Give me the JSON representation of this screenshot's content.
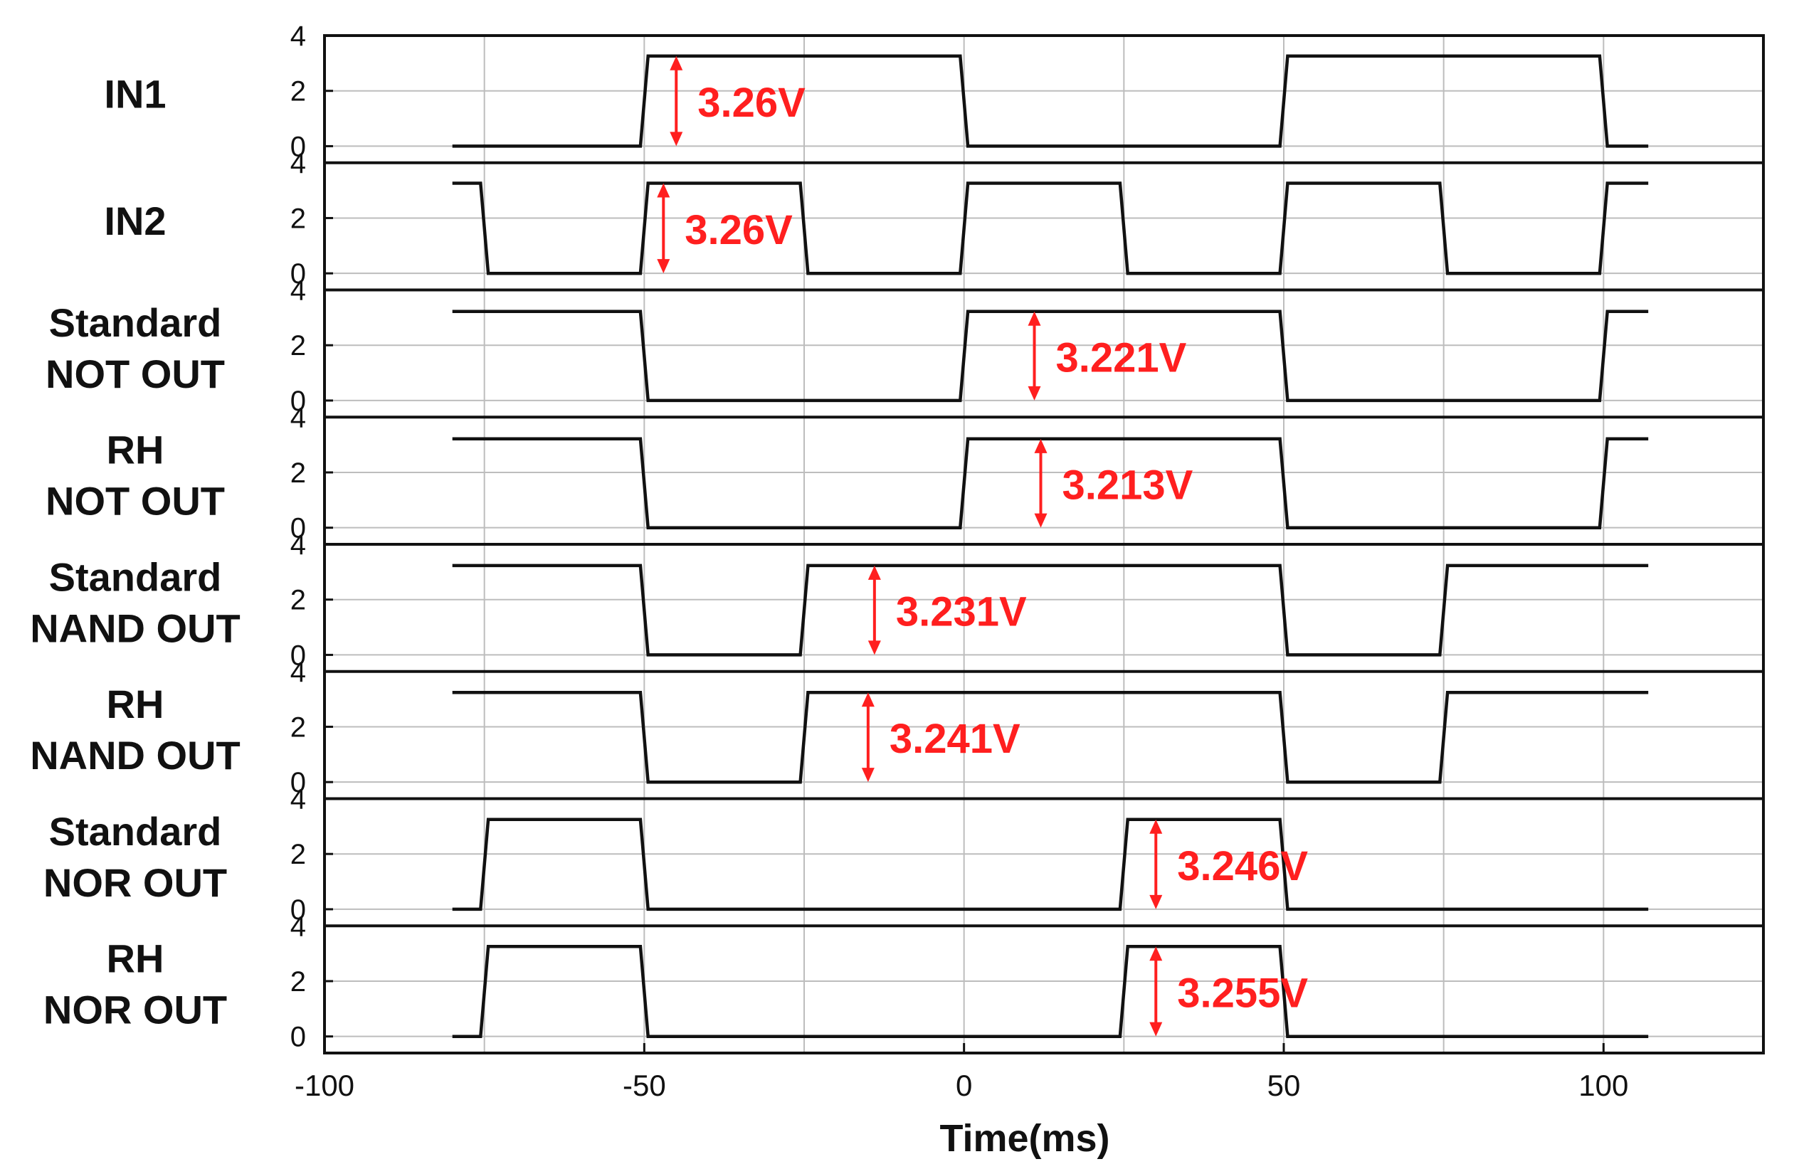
{
  "chart_data": {
    "type": "line",
    "xlabel": "Time(ms)",
    "xlim": [
      -100,
      125
    ],
    "x_ticks": [
      -100,
      -50,
      0,
      50,
      100
    ],
    "ylim": [
      -0.6,
      4
    ],
    "y_ticks": [
      0,
      2,
      4
    ],
    "grid": true,
    "data_range": [
      -80,
      107
    ],
    "series": [
      {
        "name": "IN1",
        "label_lines": [
          "IN1"
        ],
        "low": 0,
        "high": 3.26,
        "edges": [
          {
            "t": -50,
            "to": 1
          },
          {
            "t": 0,
            "to": 0
          },
          {
            "t": 50,
            "to": 1
          },
          {
            "t": 100,
            "to": 0
          }
        ],
        "start_state": 0,
        "annotation": {
          "text": "3.26V",
          "x": -45
        }
      },
      {
        "name": "IN2",
        "label_lines": [
          "IN2"
        ],
        "low": 0,
        "high": 3.26,
        "edges": [
          {
            "t": -75,
            "to": 0
          },
          {
            "t": -50,
            "to": 1
          },
          {
            "t": -25,
            "to": 0
          },
          {
            "t": 0,
            "to": 1
          },
          {
            "t": 25,
            "to": 0
          },
          {
            "t": 50,
            "to": 1
          },
          {
            "t": 75,
            "to": 0
          },
          {
            "t": 100,
            "to": 1
          }
        ],
        "start_state": 1,
        "annotation": {
          "text": "3.26V",
          "x": -47
        }
      },
      {
        "name": "Standard NOT OUT",
        "label_lines": [
          "Standard",
          "NOT OUT"
        ],
        "low": 0,
        "high": 3.221,
        "edges": [
          {
            "t": -50,
            "to": 0
          },
          {
            "t": 0,
            "to": 1
          },
          {
            "t": 50,
            "to": 0
          },
          {
            "t": 100,
            "to": 1
          }
        ],
        "start_state": 1,
        "annotation": {
          "text": "3.221V",
          "x": 11
        }
      },
      {
        "name": "RH NOT OUT",
        "label_lines": [
          "RH",
          "NOT OUT"
        ],
        "low": 0,
        "high": 3.213,
        "edges": [
          {
            "t": -50,
            "to": 0
          },
          {
            "t": 0,
            "to": 1
          },
          {
            "t": 50,
            "to": 0
          },
          {
            "t": 100,
            "to": 1
          }
        ],
        "start_state": 1,
        "annotation": {
          "text": "3.213V",
          "x": 12
        }
      },
      {
        "name": "Standard NAND OUT",
        "label_lines": [
          "Standard",
          "NAND OUT"
        ],
        "low": 0,
        "high": 3.231,
        "edges": [
          {
            "t": -50,
            "to": 0
          },
          {
            "t": -25,
            "to": 1
          },
          {
            "t": 50,
            "to": 0
          },
          {
            "t": 75,
            "to": 1
          }
        ],
        "start_state": 1,
        "annotation": {
          "text": "3.231V",
          "x": -14
        }
      },
      {
        "name": "RH NAND OUT",
        "label_lines": [
          "RH",
          "NAND OUT"
        ],
        "low": 0,
        "high": 3.241,
        "edges": [
          {
            "t": -50,
            "to": 0
          },
          {
            "t": -25,
            "to": 1
          },
          {
            "t": 50,
            "to": 0
          },
          {
            "t": 75,
            "to": 1
          }
        ],
        "start_state": 1,
        "annotation": {
          "text": "3.241V",
          "x": -15
        }
      },
      {
        "name": "Standard NOR OUT",
        "label_lines": [
          "Standard",
          "NOR OUT"
        ],
        "low": 0,
        "high": 3.246,
        "edges": [
          {
            "t": -75,
            "to": 1
          },
          {
            "t": -50,
            "to": 0
          },
          {
            "t": 25,
            "to": 1
          },
          {
            "t": 50,
            "to": 0
          }
        ],
        "start_state": 0,
        "annotation": {
          "text": "3.246V",
          "x": 30
        }
      },
      {
        "name": "RH NOR OUT",
        "label_lines": [
          "RH",
          "NOR OUT"
        ],
        "low": 0,
        "high": 3.255,
        "edges": [
          {
            "t": -75,
            "to": 1
          },
          {
            "t": -50,
            "to": 0
          },
          {
            "t": 25,
            "to": 1
          },
          {
            "t": 50,
            "to": 0
          }
        ],
        "start_state": 0,
        "annotation": {
          "text": "3.255V",
          "x": 30
        }
      }
    ]
  },
  "colors": {
    "trace": "#111111",
    "annotation": "#ff1f1f",
    "grid": "#bdbdbd"
  }
}
